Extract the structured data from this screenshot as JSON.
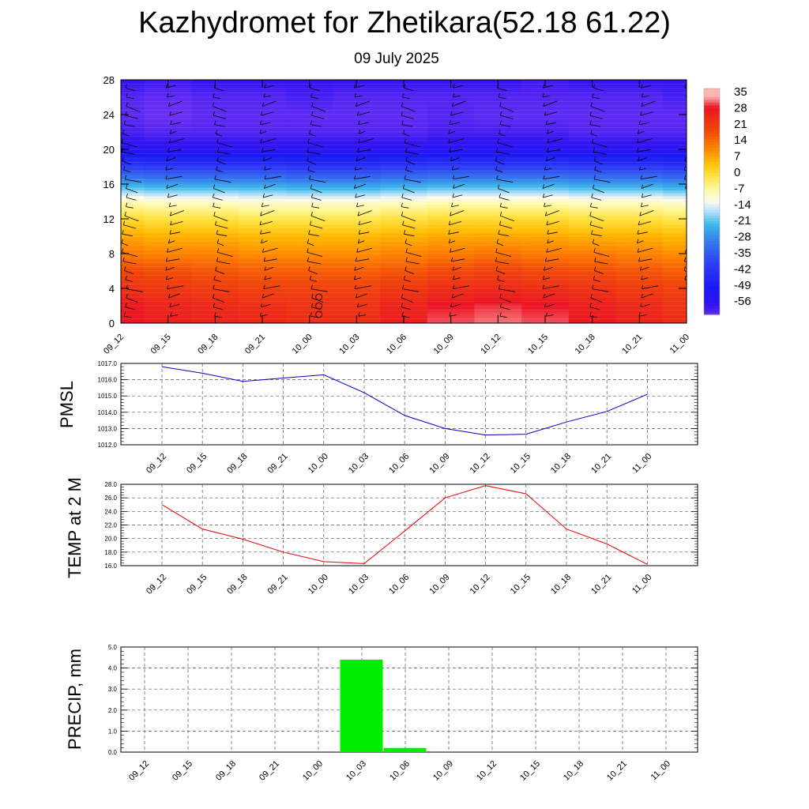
{
  "title": "Kazhydromet for Zhetikara(52.18 61.22)",
  "subtitle": "09 July 2025",
  "time_labels": [
    "09_12",
    "09_15",
    "09_18",
    "09_21",
    "10_00",
    "10_03",
    "10_06",
    "10_09",
    "10_12",
    "10_15",
    "10_18",
    "10_21",
    "11_00"
  ],
  "chart_data": [
    {
      "type": "heatmap",
      "name": "cross-section",
      "x": [
        "09_12",
        "09_15",
        "09_18",
        "09_21",
        "10_00",
        "10_03",
        "10_06",
        "10_09",
        "10_12",
        "10_15",
        "10_18",
        "10_21",
        "11_00"
      ],
      "ylim": [
        0,
        28
      ],
      "yticks": [
        0,
        4,
        8,
        12,
        16,
        20,
        24,
        28
      ],
      "colorbar": {
        "labels": [
          "35",
          "28",
          "21",
          "14",
          "7",
          "0",
          "-7",
          "-14",
          "-21",
          "-28",
          "-35",
          "-42",
          "-49",
          "-56"
        ],
        "values": [
          35,
          28,
          21,
          14,
          7,
          0,
          -7,
          -14,
          -21,
          -28,
          -35,
          -42,
          -49,
          -56
        ]
      },
      "levels_y": [
        0,
        2,
        4,
        6,
        8,
        10,
        12,
        14,
        16,
        18,
        20,
        22,
        24,
        26,
        28
      ],
      "values": [
        [
          30,
          29,
          24,
          20,
          13,
          8,
          1,
          -8,
          -24,
          -40,
          -55,
          -60,
          -62,
          -61,
          -58
        ],
        [
          28,
          27,
          23,
          19,
          12,
          7,
          0,
          -9,
          -25,
          -41,
          -56,
          -61,
          -63,
          -62,
          -59
        ],
        [
          27,
          26,
          22,
          18,
          12,
          7,
          0,
          -9,
          -25,
          -41,
          -56,
          -61,
          -62,
          -61,
          -58
        ],
        [
          26,
          25,
          21,
          17,
          11,
          6,
          -1,
          -10,
          -25,
          -41,
          -56,
          -61,
          -62,
          -61,
          -58
        ],
        [
          25,
          24,
          21,
          17,
          11,
          6,
          -1,
          -10,
          -26,
          -42,
          -56,
          -61,
          -62,
          -60,
          -58
        ],
        [
          25,
          24,
          21,
          17,
          11,
          6,
          -1,
          -10,
          -26,
          -42,
          -56,
          -61,
          -62,
          -61,
          -58
        ],
        [
          28,
          27,
          23,
          18,
          12,
          7,
          0,
          -9,
          -25,
          -41,
          -56,
          -61,
          -62,
          -61,
          -58
        ],
        [
          32,
          30,
          25,
          20,
          13,
          8,
          1,
          -8,
          -24,
          -40,
          -55,
          -60,
          -61,
          -61,
          -58
        ],
        [
          33,
          31,
          26,
          21,
          14,
          8,
          1,
          -8,
          -24,
          -40,
          -55,
          -60,
          -62,
          -61,
          -58
        ],
        [
          32,
          30,
          25,
          20,
          13,
          8,
          1,
          -8,
          -24,
          -40,
          -55,
          -60,
          -62,
          -61,
          -59
        ],
        [
          29,
          28,
          24,
          19,
          13,
          7,
          0,
          -9,
          -25,
          -41,
          -56,
          -61,
          -62,
          -61,
          -58
        ],
        [
          27,
          26,
          22,
          18,
          12,
          7,
          0,
          -9,
          -25,
          -41,
          -56,
          -61,
          -62,
          -61,
          -58
        ],
        [
          25,
          24,
          21,
          17,
          11,
          6,
          -1,
          -10,
          -26,
          -42,
          -56,
          -61,
          -62,
          -60,
          -58
        ]
      ]
    },
    {
      "type": "line",
      "ylabel": "PMSL",
      "ylim": [
        1012.0,
        1017.0
      ],
      "yticks": [
        "1012.0",
        "1013.0",
        "1014.0",
        "1015.0",
        "1016.0",
        "1017.0"
      ],
      "x": [
        "09_12",
        "09_15",
        "09_18",
        "09_21",
        "10_00",
        "10_03",
        "10_06",
        "10_09",
        "10_12",
        "10_15",
        "10_18",
        "10_21",
        "11_00"
      ],
      "series": [
        {
          "values": [
            1016.8,
            1016.4,
            1015.9,
            1016.1,
            1016.3,
            1015.2,
            1013.8,
            1013.0,
            1012.6,
            1012.65,
            1013.4,
            1014.05,
            1015.1
          ],
          "color": "#0000cc"
        }
      ]
    },
    {
      "type": "line",
      "ylabel": "TEMP at 2 M",
      "ylim": [
        16.0,
        28.0
      ],
      "yticks": [
        "16.0",
        "18.0",
        "20.0",
        "22.0",
        "24.0",
        "26.0",
        "28.0"
      ],
      "x": [
        "09_12",
        "09_15",
        "09_18",
        "09_21",
        "10_00",
        "10_03",
        "10_06",
        "10_09",
        "10_12",
        "10_15",
        "10_18",
        "10_21",
        "11_00"
      ],
      "series": [
        {
          "values": [
            25.0,
            21.4,
            19.9,
            18.0,
            16.6,
            16.3,
            21.1,
            26.0,
            27.8,
            26.6,
            21.4,
            19.2,
            16.2
          ],
          "color": "#ee0000"
        }
      ]
    },
    {
      "type": "bar",
      "ylabel": "PRECIP, mm",
      "ylim": [
        0.0,
        5.0
      ],
      "yticks": [
        "0.0",
        "1.0",
        "2.0",
        "3.0",
        "4.0",
        "5.0"
      ],
      "categories": [
        "09_12",
        "09_15",
        "09_18",
        "09_21",
        "10_00",
        "10_03",
        "10_06",
        "10_09",
        "10_12",
        "10_15",
        "10_18",
        "10_21",
        "11_00"
      ],
      "values": [
        0,
        0,
        0,
        0,
        0,
        4.4,
        0.2,
        0,
        0,
        0,
        0,
        0,
        0
      ],
      "color": "#00ee00"
    }
  ]
}
